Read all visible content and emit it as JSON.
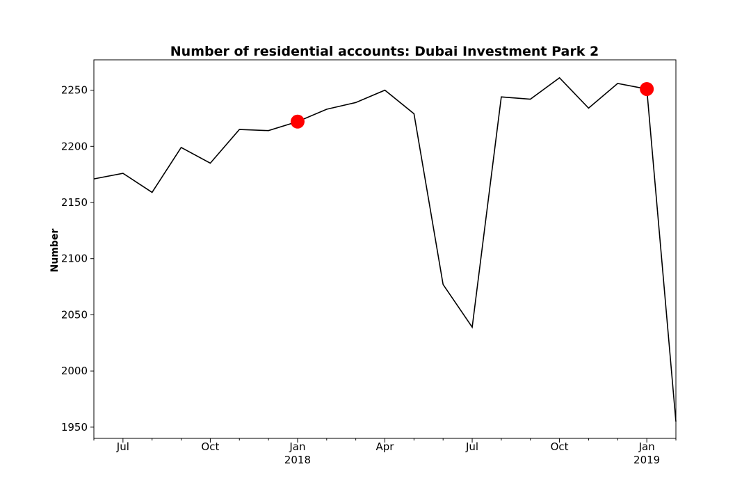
{
  "chart_data": {
    "type": "line",
    "title": "Number of residential accounts: Dubai Investment Park 2",
    "xlabel": "",
    "ylabel": "Number",
    "x": [
      "2017-06",
      "2017-07",
      "2017-08",
      "2017-09",
      "2017-10",
      "2017-11",
      "2017-12",
      "2018-01",
      "2018-02",
      "2018-03",
      "2018-04",
      "2018-05",
      "2018-06",
      "2018-07",
      "2018-08",
      "2018-09",
      "2018-10",
      "2018-11",
      "2018-12",
      "2019-01",
      "2019-02"
    ],
    "series": [
      {
        "color": "#000000",
        "values": [
          2171,
          2176,
          2159,
          2199,
          2185,
          2215,
          2214,
          2222,
          2233,
          2239,
          2250,
          2229,
          2077,
          2039,
          2244,
          2242,
          2261,
          2234,
          2256,
          2251,
          1955
        ]
      }
    ],
    "highlighted_points": [
      {
        "x": "2018-01",
        "y": 2222
      },
      {
        "x": "2019-01",
        "y": 2251
      }
    ],
    "marker_color": "#ff0000",
    "xlim": [
      "2017-06",
      "2019-02"
    ],
    "ylim": [
      1940,
      2277
    ],
    "yticks": [
      1950,
      2000,
      2050,
      2100,
      2150,
      2200,
      2250
    ],
    "xticks_major": [
      {
        "x": "2017-07",
        "label": "Jul",
        "sublabel": ""
      },
      {
        "x": "2017-10",
        "label": "Oct",
        "sublabel": ""
      },
      {
        "x": "2018-01",
        "label": "Jan",
        "sublabel": "2018"
      },
      {
        "x": "2018-04",
        "label": "Apr",
        "sublabel": ""
      },
      {
        "x": "2018-07",
        "label": "Jul",
        "sublabel": ""
      },
      {
        "x": "2018-10",
        "label": "Oct",
        "sublabel": ""
      },
      {
        "x": "2019-01",
        "label": "Jan",
        "sublabel": "2019"
      }
    ],
    "grid": false,
    "legend": "none"
  }
}
